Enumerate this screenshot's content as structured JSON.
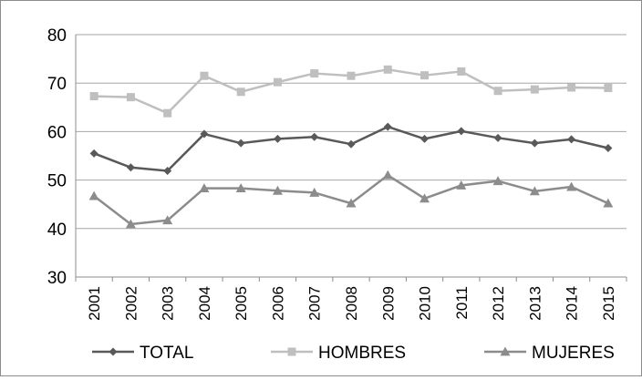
{
  "chart_data": {
    "type": "line",
    "title": "",
    "xlabel": "",
    "ylabel": "",
    "categories": [
      "2001",
      "2002",
      "2003",
      "2004",
      "2005",
      "2006",
      "2007",
      "2008",
      "2009",
      "2010",
      "2011",
      "2012",
      "2013",
      "2014",
      "2015"
    ],
    "ylim": [
      30,
      80
    ],
    "yticks": [
      30,
      40,
      50,
      60,
      70,
      80
    ],
    "grid": true,
    "legend_position": "bottom",
    "series": [
      {
        "name": "TOTAL",
        "marker": "diamond",
        "color": "#595959",
        "values": [
          55.5,
          52.6,
          51.9,
          59.5,
          57.6,
          58.5,
          58.9,
          57.4,
          61.0,
          58.5,
          60.1,
          58.7,
          57.6,
          58.4,
          56.6
        ]
      },
      {
        "name": "HOMBRES",
        "marker": "square",
        "color": "#bfbfbf",
        "values": [
          67.3,
          67.1,
          63.8,
          71.5,
          68.2,
          70.2,
          72.0,
          71.5,
          72.8,
          71.6,
          72.4,
          68.4,
          68.7,
          69.1,
          69.0
        ]
      },
      {
        "name": "MUJERES",
        "marker": "triangle",
        "color": "#8c8c8c",
        "values": [
          46.7,
          40.9,
          41.7,
          48.3,
          48.3,
          47.8,
          47.4,
          45.2,
          51.0,
          46.2,
          48.9,
          49.8,
          47.7,
          48.6,
          45.2
        ]
      }
    ]
  }
}
